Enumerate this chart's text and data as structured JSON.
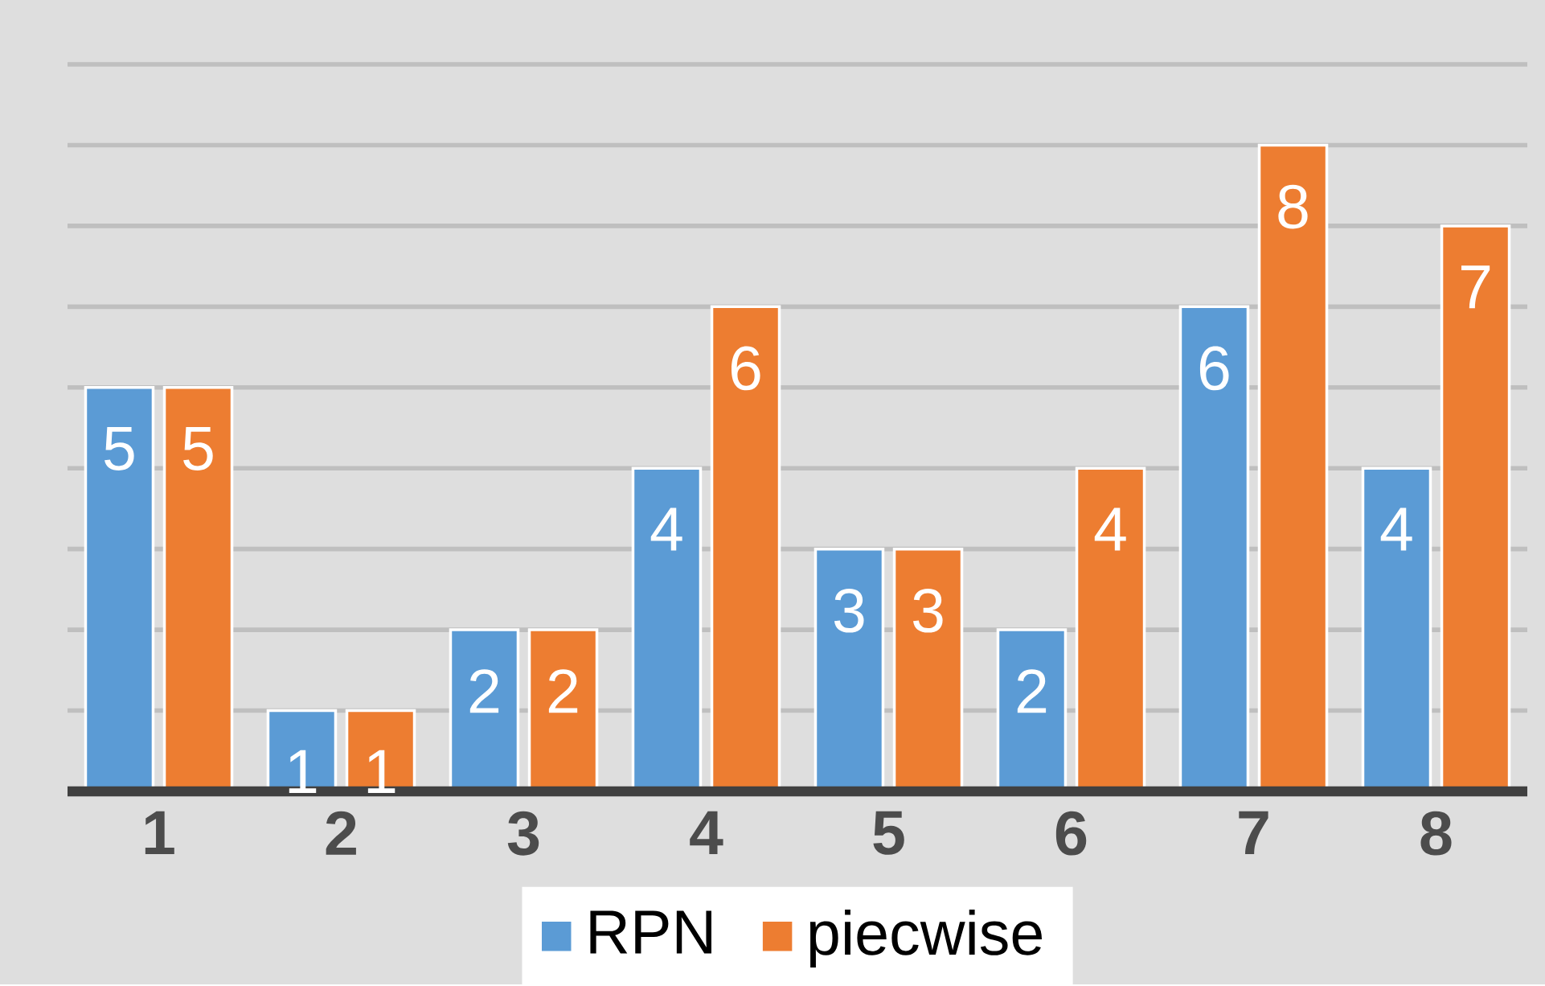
{
  "chart_data": {
    "type": "bar",
    "categories": [
      "1",
      "2",
      "3",
      "4",
      "5",
      "6",
      "7",
      "8"
    ],
    "series": [
      {
        "name": "RPN",
        "color": "#5b9bd5",
        "values": [
          5,
          1,
          2,
          4,
          3,
          2,
          6,
          4
        ]
      },
      {
        "name": "piecwise",
        "color": "#ed7d31",
        "values": [
          5,
          1,
          2,
          6,
          3,
          4,
          8,
          7
        ]
      }
    ],
    "ylim": [
      0,
      9
    ],
    "yticks": [
      {
        "value": 0,
        "label": null
      },
      {
        "value": 1,
        "label": null
      },
      {
        "value": 2,
        "label": null
      },
      {
        "value": 3,
        "label": null
      },
      {
        "value": 4,
        "label": null
      },
      {
        "value": 5,
        "label": null
      },
      {
        "value": 6,
        "label": null
      },
      {
        "value": 7,
        "label": null
      },
      {
        "value": 8,
        "label": null
      },
      {
        "value": 9,
        "label": null
      }
    ],
    "tick_labels": "x",
    "grid": "y",
    "legend": "bottom",
    "data_labels": true
  }
}
